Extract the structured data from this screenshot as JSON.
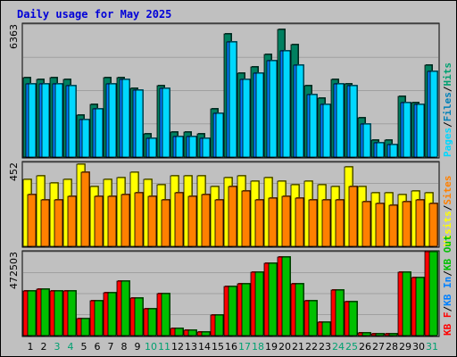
{
  "chart_data": [
    {
      "type": "bar",
      "title": "Daily usage for May 2025",
      "max_label": "6363",
      "legend": [
        {
          "text": "Pages",
          "color": "#00d8ff"
        },
        {
          "text": "/",
          "color": "#000000"
        },
        {
          "text": "Files",
          "color": "#0080b8"
        },
        {
          "text": "/",
          "color": "#000000"
        },
        {
          "text": "Hits",
          "color": "#00a070"
        }
      ],
      "categories": [
        "1",
        "2",
        "3",
        "4",
        "5",
        "6",
        "7",
        "8",
        "9",
        "10",
        "11",
        "12",
        "13",
        "14",
        "15",
        "16",
        "17",
        "18",
        "19",
        "20",
        "21",
        "22",
        "23",
        "24",
        "25",
        "26",
        "27",
        "28",
        "29",
        "30",
        "31"
      ],
      "weekend_days": [
        "3",
        "4",
        "10",
        "11",
        "17",
        "18",
        "24",
        "25",
        "31"
      ],
      "ylim": [
        0,
        6363
      ],
      "series": [
        {
          "name": "Hits",
          "color": "#008060",
          "values": [
            3800,
            3700,
            3800,
            3700,
            2000,
            2500,
            3800,
            3800,
            3300,
            1100,
            3400,
            1200,
            1200,
            1100,
            2300,
            5900,
            4000,
            4300,
            4900,
            6100,
            5400,
            3400,
            2800,
            3700,
            3500,
            1900,
            800,
            800,
            2900,
            2600,
            4400
          ]
        },
        {
          "name": "Files",
          "color": "#0080ff",
          "values": [
            3500,
            3500,
            3500,
            3400,
            1800,
            2300,
            3500,
            3700,
            3200,
            900,
            3300,
            1000,
            1000,
            900,
            2100,
            5500,
            3700,
            4000,
            4600,
            5100,
            4400,
            3000,
            2500,
            3500,
            3400,
            1600,
            700,
            600,
            2600,
            2500,
            4100
          ]
        },
        {
          "name": "Pages",
          "color": "#00d8ff",
          "values": [
            3500,
            3500,
            3500,
            3400,
            1800,
            2300,
            3500,
            3700,
            3200,
            900,
            3300,
            1000,
            1000,
            900,
            2100,
            5500,
            3700,
            4000,
            4600,
            5100,
            4400,
            3000,
            2500,
            3500,
            3400,
            1600,
            700,
            600,
            2600,
            2500,
            4100
          ]
        }
      ]
    },
    {
      "type": "bar",
      "max_label": "452",
      "legend": [
        {
          "text": "Visits",
          "color": "#ffff00"
        },
        {
          "text": "/",
          "color": "#000000"
        },
        {
          "text": "Sites",
          "color": "#ff8000"
        }
      ],
      "categories": [
        "1",
        "2",
        "3",
        "4",
        "5",
        "6",
        "7",
        "8",
        "9",
        "10",
        "11",
        "12",
        "13",
        "14",
        "15",
        "16",
        "17",
        "18",
        "19",
        "20",
        "21",
        "22",
        "23",
        "24",
        "25",
        "26",
        "27",
        "28",
        "29",
        "30",
        "31"
      ],
      "ylim": [
        0,
        452
      ],
      "series": [
        {
          "name": "Visits",
          "color": "#ffff00",
          "values": [
            360,
            380,
            340,
            360,
            440,
            320,
            360,
            370,
            400,
            360,
            330,
            380,
            380,
            380,
            320,
            370,
            380,
            350,
            370,
            350,
            330,
            350,
            330,
            320,
            430,
            320,
            290,
            290,
            280,
            300,
            290
          ]
        },
        {
          "name": "Sites",
          "color": "#ff8000",
          "values": [
            280,
            250,
            250,
            270,
            400,
            270,
            270,
            280,
            290,
            270,
            250,
            290,
            270,
            280,
            250,
            320,
            300,
            250,
            260,
            270,
            260,
            250,
            250,
            250,
            320,
            240,
            230,
            220,
            240,
            250,
            230
          ]
        }
      ]
    },
    {
      "type": "bar",
      "max_label": "472503",
      "legend": [
        {
          "text": "KB F",
          "color": "#ff0000"
        },
        {
          "text": "/",
          "color": "#000000"
        },
        {
          "text": "KB In",
          "color": "#0080ff"
        },
        {
          "text": "/",
          "color": "#000000"
        },
        {
          "text": "KB Out",
          "color": "#00c000"
        }
      ],
      "categories": [
        "1",
        "2",
        "3",
        "4",
        "5",
        "6",
        "7",
        "8",
        "9",
        "10",
        "11",
        "12",
        "13",
        "14",
        "15",
        "16",
        "17",
        "18",
        "19",
        "20",
        "21",
        "22",
        "23",
        "24",
        "25",
        "26",
        "27",
        "28",
        "29",
        "30",
        "31"
      ],
      "ylim": [
        0,
        472503
      ],
      "series": [
        {
          "name": "KB F",
          "color": "#ff0000",
          "values": [
            250000,
            262000,
            252000,
            250000,
            96000,
            195000,
            242000,
            305000,
            212000,
            150000,
            235000,
            38000,
            28000,
            22000,
            115000,
            278000,
            290000,
            355000,
            405000,
            440000,
            290000,
            195000,
            75000,
            255000,
            190000,
            15000,
            8000,
            8000,
            355000,
            325000,
            472503
          ]
        },
        {
          "name": "KB Out",
          "color": "#00c000",
          "values": [
            250000,
            262000,
            252000,
            250000,
            96000,
            195000,
            242000,
            305000,
            212000,
            150000,
            235000,
            38000,
            28000,
            22000,
            115000,
            278000,
            290000,
            355000,
            405000,
            440000,
            290000,
            195000,
            75000,
            255000,
            190000,
            15000,
            8000,
            8000,
            355000,
            325000,
            472503
          ]
        }
      ]
    }
  ]
}
